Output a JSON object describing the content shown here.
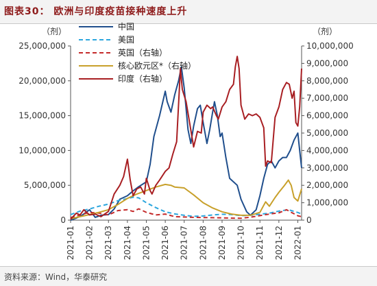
{
  "figure": {
    "title": "图表30：  欧洲与印度疫苗接种速度上升",
    "source": "资料来源：Wind，华泰研究"
  },
  "chart_data": {
    "type": "line",
    "left_axis": {
      "unit": "（剂）",
      "ylim": [
        0,
        25000000
      ],
      "ticks": [
        0,
        5000000,
        10000000,
        15000000,
        20000000,
        25000000
      ],
      "tick_labels": [
        "0",
        "5,000,000",
        "10,000,000",
        "15,000,000",
        "20,000,000",
        "25,000,000"
      ]
    },
    "right_axis": {
      "unit": "（剂）",
      "ylim": [
        0,
        10000000
      ],
      "ticks": [
        0,
        1000000,
        2000000,
        3000000,
        4000000,
        5000000,
        6000000,
        7000000,
        8000000,
        9000000,
        10000000
      ],
      "tick_labels": [
        "0",
        "1,000,000",
        "2,000,000",
        "3,000,000",
        "4,000,000",
        "5,000,000",
        "6,000,000",
        "7,000,000",
        "8,000,000",
        "9,000,000",
        "10,000,000"
      ]
    },
    "x_axis": {
      "ticks": [
        0,
        1,
        2,
        3,
        4,
        5,
        6,
        7,
        8,
        9,
        10,
        11,
        12
      ],
      "tick_labels": [
        "2021-01",
        "2021-02",
        "2021-03",
        "2021-04",
        "2021-05",
        "2021-06",
        "2021-07",
        "2021-08",
        "2021-09",
        "2021-10",
        "2021-11",
        "2021-12",
        "2022-01"
      ],
      "xlim": [
        0,
        12.2
      ]
    },
    "grid": false,
    "legend": "top-left",
    "series": [
      {
        "name": "中国",
        "axis": "left",
        "color": "#1f4e8c",
        "dash": "solid",
        "points": [
          [
            0,
            0
          ],
          [
            0.3,
            300000
          ],
          [
            0.6,
            700000
          ],
          [
            1,
            1500000
          ],
          [
            1.3,
            400000
          ],
          [
            1.6,
            700000
          ],
          [
            2,
            800000
          ],
          [
            2.3,
            1600000
          ],
          [
            2.6,
            3000000
          ],
          [
            3,
            3500000
          ],
          [
            3.3,
            4200000
          ],
          [
            3.6,
            4800000
          ],
          [
            4,
            5500000
          ],
          [
            4.2,
            8000000
          ],
          [
            4.4,
            12000000
          ],
          [
            4.7,
            15000000
          ],
          [
            5,
            18500000
          ],
          [
            5.1,
            17000000
          ],
          [
            5.3,
            15500000
          ],
          [
            5.5,
            18000000
          ],
          [
            5.7,
            20000000
          ],
          [
            5.85,
            22000000
          ],
          [
            6,
            19000000
          ],
          [
            6.2,
            13000000
          ],
          [
            6.35,
            11000000
          ],
          [
            6.5,
            13500000
          ],
          [
            6.7,
            16000000
          ],
          [
            6.85,
            16500000
          ],
          [
            7,
            14000000
          ],
          [
            7.2,
            11000000
          ],
          [
            7.35,
            13000000
          ],
          [
            7.5,
            15500000
          ],
          [
            7.6,
            17000000
          ],
          [
            7.75,
            15000000
          ],
          [
            7.9,
            12000000
          ],
          [
            8,
            12500000
          ],
          [
            8.2,
            9000000
          ],
          [
            8.4,
            6000000
          ],
          [
            8.6,
            5500000
          ],
          [
            8.8,
            5000000
          ],
          [
            9,
            3000000
          ],
          [
            9.3,
            1200000
          ],
          [
            9.5,
            700000
          ],
          [
            9.8,
            1500000
          ],
          [
            10,
            3500000
          ],
          [
            10.2,
            6000000
          ],
          [
            10.4,
            8000000
          ],
          [
            10.6,
            8500000
          ],
          [
            10.8,
            7500000
          ],
          [
            11,
            8500000
          ],
          [
            11.2,
            9000000
          ],
          [
            11.4,
            9000000
          ],
          [
            11.6,
            10000000
          ],
          [
            11.8,
            11500000
          ],
          [
            12,
            12500000
          ],
          [
            12.1,
            10000000
          ],
          [
            12.2,
            7500000
          ]
        ]
      },
      {
        "name": "美国",
        "axis": "left",
        "color": "#2ba6de",
        "dash": "dashed",
        "points": [
          [
            0,
            800000
          ],
          [
            0.5,
            1300000
          ],
          [
            1,
            1600000
          ],
          [
            1.5,
            2000000
          ],
          [
            2,
            2300000
          ],
          [
            2.5,
            2800000
          ],
          [
            3,
            3100000
          ],
          [
            3.3,
            3300000
          ],
          [
            3.6,
            3200000
          ],
          [
            4,
            2500000
          ],
          [
            4.5,
            1800000
          ],
          [
            5,
            1200000
          ],
          [
            5.5,
            900000
          ],
          [
            6,
            700000
          ],
          [
            6.5,
            550000
          ],
          [
            7,
            600000
          ],
          [
            7.5,
            750000
          ],
          [
            8,
            850000
          ],
          [
            8.5,
            800000
          ],
          [
            9,
            650000
          ],
          [
            9.5,
            700000
          ],
          [
            10,
            850000
          ],
          [
            10.5,
            1000000
          ],
          [
            11,
            1300000
          ],
          [
            11.5,
            1500000
          ],
          [
            12,
            1100000
          ],
          [
            12.2,
            900000
          ]
        ]
      },
      {
        "name": "英国（右轴）",
        "axis": "right",
        "color": "#c42a2a",
        "dash": "dashed",
        "points": [
          [
            0,
            150000
          ],
          [
            0.5,
            300000
          ],
          [
            1,
            450000
          ],
          [
            1.5,
            400000
          ],
          [
            2,
            300000
          ],
          [
            2.5,
            550000
          ],
          [
            3,
            600000
          ],
          [
            3.3,
            500000
          ],
          [
            3.6,
            650000
          ],
          [
            4,
            450000
          ],
          [
            4.5,
            300000
          ],
          [
            5,
            350000
          ],
          [
            5.5,
            200000
          ],
          [
            6,
            180000
          ],
          [
            6.5,
            160000
          ],
          [
            7,
            150000
          ],
          [
            7.5,
            140000
          ],
          [
            8,
            130000
          ],
          [
            8.5,
            120000
          ],
          [
            9,
            110000
          ],
          [
            9.5,
            170000
          ],
          [
            10,
            260000
          ],
          [
            10.5,
            350000
          ],
          [
            11,
            420000
          ],
          [
            11.4,
            600000
          ],
          [
            11.7,
            420000
          ],
          [
            12,
            250000
          ],
          [
            12.2,
            200000
          ]
        ]
      },
      {
        "name": "核心欧元区*（右轴）",
        "axis": "right",
        "color": "#c8a02a",
        "dash": "solid",
        "points": [
          [
            0,
            80000
          ],
          [
            0.5,
            200000
          ],
          [
            1,
            320000
          ],
          [
            1.5,
            450000
          ],
          [
            2,
            600000
          ],
          [
            2.5,
            900000
          ],
          [
            3,
            1250000
          ],
          [
            3.5,
            1500000
          ],
          [
            4,
            1700000
          ],
          [
            4.5,
            1900000
          ],
          [
            5,
            2050000
          ],
          [
            5.3,
            2000000
          ],
          [
            5.5,
            1900000
          ],
          [
            6,
            1850000
          ],
          [
            6.5,
            1450000
          ],
          [
            7,
            1000000
          ],
          [
            7.5,
            700000
          ],
          [
            8,
            480000
          ],
          [
            8.5,
            350000
          ],
          [
            9,
            280000
          ],
          [
            9.5,
            280000
          ],
          [
            10,
            450000
          ],
          [
            10.3,
            1050000
          ],
          [
            10.5,
            800000
          ],
          [
            10.8,
            1300000
          ],
          [
            11,
            1600000
          ],
          [
            11.3,
            2000000
          ],
          [
            11.5,
            2300000
          ],
          [
            11.65,
            2000000
          ],
          [
            11.8,
            1300000
          ],
          [
            12,
            1100000
          ],
          [
            12.2,
            1800000
          ]
        ]
      },
      {
        "name": "印度（右轴）",
        "axis": "right",
        "color": "#a81e22",
        "dash": "solid",
        "points": [
          [
            0,
            50000
          ],
          [
            0.3,
            400000
          ],
          [
            0.5,
            300000
          ],
          [
            0.7,
            600000
          ],
          [
            1,
            300000
          ],
          [
            1.3,
            350000
          ],
          [
            1.6,
            200000
          ],
          [
            2,
            500000
          ],
          [
            2.3,
            1500000
          ],
          [
            2.6,
            2000000
          ],
          [
            2.8,
            2500000
          ],
          [
            3,
            3500000
          ],
          [
            3.15,
            2300000
          ],
          [
            3.3,
            1400000
          ],
          [
            3.5,
            1800000
          ],
          [
            3.7,
            1900000
          ],
          [
            3.9,
            1500000
          ],
          [
            4,
            2400000
          ],
          [
            4.2,
            1700000
          ],
          [
            4.3,
            1500000
          ],
          [
            4.5,
            2000000
          ],
          [
            4.7,
            2300000
          ],
          [
            5,
            2800000
          ],
          [
            5.2,
            3000000
          ],
          [
            5.4,
            3800000
          ],
          [
            5.6,
            4500000
          ],
          [
            5.8,
            8700000
          ],
          [
            5.9,
            7500000
          ],
          [
            6.1,
            6800000
          ],
          [
            6.3,
            5500000
          ],
          [
            6.5,
            4200000
          ],
          [
            6.7,
            5100000
          ],
          [
            6.9,
            5000000
          ],
          [
            7,
            6200000
          ],
          [
            7.2,
            6600000
          ],
          [
            7.4,
            6400000
          ],
          [
            7.5,
            6500000
          ],
          [
            7.7,
            6000000
          ],
          [
            7.8,
            5800000
          ],
          [
            8,
            6500000
          ],
          [
            8.2,
            6800000
          ],
          [
            8.4,
            7500000
          ],
          [
            8.6,
            7800000
          ],
          [
            8.7,
            8800000
          ],
          [
            8.8,
            9400000
          ],
          [
            8.9,
            8700000
          ],
          [
            9,
            6600000
          ],
          [
            9.2,
            5800000
          ],
          [
            9.4,
            6100000
          ],
          [
            9.6,
            6000000
          ],
          [
            9.8,
            6100000
          ],
          [
            10,
            5900000
          ],
          [
            10.2,
            5300000
          ],
          [
            10.3,
            3100000
          ],
          [
            10.4,
            3400000
          ],
          [
            10.6,
            3300000
          ],
          [
            10.8,
            5900000
          ],
          [
            11,
            6500000
          ],
          [
            11.2,
            7500000
          ],
          [
            11.4,
            7900000
          ],
          [
            11.55,
            7800000
          ],
          [
            11.7,
            7000000
          ],
          [
            11.8,
            7400000
          ],
          [
            11.9,
            5600000
          ],
          [
            12,
            5400000
          ],
          [
            12.1,
            6500000
          ],
          [
            12.2,
            8700000
          ]
        ]
      }
    ]
  }
}
